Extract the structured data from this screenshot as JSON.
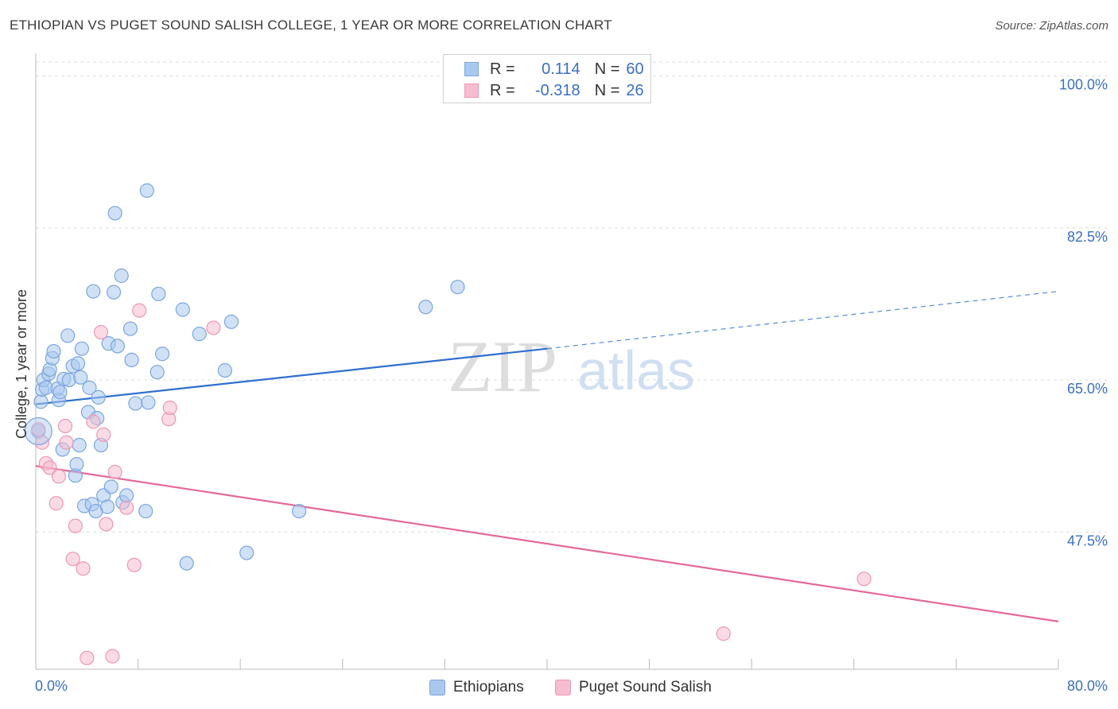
{
  "title": "ETHIOPIAN VS PUGET SOUND SALISH COLLEGE, 1 YEAR OR MORE CORRELATION CHART",
  "source": "Source: ZipAtlas.com",
  "watermark": {
    "zip": "ZIP",
    "atlas": "atlas"
  },
  "legend": {
    "rows": [
      {
        "r_label": "R =",
        "r_value": "0.114",
        "n_label": "N =",
        "n_value": "60"
      },
      {
        "r_label": "R =",
        "r_value": "-0.318",
        "n_label": "N =",
        "n_value": "26"
      }
    ]
  },
  "bottom_legend": [
    "Ethiopians",
    "Puget Sound Salish"
  ],
  "colors": {
    "blue_fill": "#a9c8ee",
    "blue_stroke": "#7aa6de",
    "blue_line": "#2f6fd0",
    "pink_fill": "#f6bcd0",
    "pink_stroke": "#ec98b6",
    "pink_line": "#e4689a",
    "tick_label": "#3a6fc4",
    "grid": "#dddddd",
    "axis_text": "#333333"
  },
  "chart_data": {
    "type": "scatter",
    "title": "ETHIOPIAN VS PUGET SOUND SALISH COLLEGE, 1 YEAR OR MORE CORRELATION CHART",
    "xlabel": "",
    "ylabel": "College, 1 year or more",
    "xlim": [
      0,
      80
    ],
    "ylim": [
      31.7,
      101.6
    ],
    "x_tick_labels": [
      "0.0%",
      "80.0%"
    ],
    "y_ticks": [
      100.0,
      82.5,
      65.0,
      47.5
    ],
    "y_tick_labels": [
      "100.0%",
      "82.5%",
      "65.0%",
      "47.5%"
    ],
    "grid": true,
    "series": [
      {
        "name": "Ethiopians",
        "color": "blue",
        "R": 0.114,
        "N": 60,
        "trend": {
          "x0": 0,
          "y0": 62.2,
          "x1_solid": 40,
          "y1_solid": 68.6,
          "x1_dashed": 80,
          "y1_dashed": 75.2
        },
        "points": [
          [
            0.2,
            59.1
          ],
          [
            0.4,
            62.5
          ],
          [
            0.5,
            63.9
          ],
          [
            0.6,
            65.0
          ],
          [
            0.8,
            64.1
          ],
          [
            1.0,
            65.7
          ],
          [
            1.1,
            66.2
          ],
          [
            1.3,
            67.5
          ],
          [
            1.4,
            68.3
          ],
          [
            1.7,
            64.0
          ],
          [
            1.8,
            62.7
          ],
          [
            1.9,
            63.6
          ],
          [
            2.1,
            57.0
          ],
          [
            2.2,
            65.1
          ],
          [
            2.5,
            70.1
          ],
          [
            2.6,
            65.0
          ],
          [
            2.9,
            66.6
          ],
          [
            3.1,
            54.0
          ],
          [
            3.2,
            55.3
          ],
          [
            3.3,
            66.9
          ],
          [
            3.4,
            57.5
          ],
          [
            3.5,
            65.3
          ],
          [
            3.6,
            68.6
          ],
          [
            3.8,
            50.5
          ],
          [
            4.1,
            61.3
          ],
          [
            4.2,
            64.1
          ],
          [
            4.4,
            50.7
          ],
          [
            4.5,
            75.2
          ],
          [
            4.7,
            49.9
          ],
          [
            4.8,
            60.6
          ],
          [
            4.9,
            63.0
          ],
          [
            5.1,
            57.5
          ],
          [
            5.3,
            51.7
          ],
          [
            5.6,
            50.4
          ],
          [
            5.7,
            69.2
          ],
          [
            5.9,
            52.7
          ],
          [
            6.1,
            75.1
          ],
          [
            6.2,
            84.2
          ],
          [
            6.4,
            68.9
          ],
          [
            6.7,
            77.0
          ],
          [
            6.8,
            50.9
          ],
          [
            7.1,
            51.7
          ],
          [
            7.4,
            70.9
          ],
          [
            7.5,
            67.3
          ],
          [
            7.8,
            62.3
          ],
          [
            8.6,
            49.9
          ],
          [
            8.7,
            86.8
          ],
          [
            8.8,
            62.4
          ],
          [
            9.5,
            65.9
          ],
          [
            9.6,
            74.9
          ],
          [
            9.9,
            68.0
          ],
          [
            11.5,
            73.1
          ],
          [
            11.8,
            43.9
          ],
          [
            12.8,
            70.3
          ],
          [
            14.8,
            66.1
          ],
          [
            15.3,
            71.7
          ],
          [
            16.5,
            45.1
          ],
          [
            20.6,
            49.9
          ],
          [
            30.5,
            73.4
          ],
          [
            33.0,
            75.7
          ]
        ]
      },
      {
        "name": "Puget Sound Salish",
        "color": "pink",
        "R": -0.318,
        "N": 26,
        "trend": {
          "x0": 0,
          "y0": 55.1,
          "x1": 80,
          "y1": 37.2
        },
        "points": [
          [
            0.2,
            59.3
          ],
          [
            0.5,
            57.8
          ],
          [
            0.8,
            55.4
          ],
          [
            1.1,
            54.9
          ],
          [
            1.6,
            50.8
          ],
          [
            1.8,
            53.9
          ],
          [
            2.3,
            59.7
          ],
          [
            2.4,
            57.8
          ],
          [
            2.9,
            44.4
          ],
          [
            3.1,
            48.2
          ],
          [
            3.7,
            43.3
          ],
          [
            4.0,
            33.0
          ],
          [
            4.5,
            60.2
          ],
          [
            5.1,
            70.5
          ],
          [
            5.3,
            58.7
          ],
          [
            5.5,
            48.4
          ],
          [
            6.0,
            33.2
          ],
          [
            6.2,
            54.4
          ],
          [
            7.1,
            50.3
          ],
          [
            7.7,
            43.7
          ],
          [
            8.1,
            73.0
          ],
          [
            10.4,
            60.5
          ],
          [
            10.5,
            61.8
          ],
          [
            13.9,
            71.0
          ],
          [
            53.8,
            35.8
          ],
          [
            64.8,
            42.1
          ]
        ]
      }
    ]
  }
}
